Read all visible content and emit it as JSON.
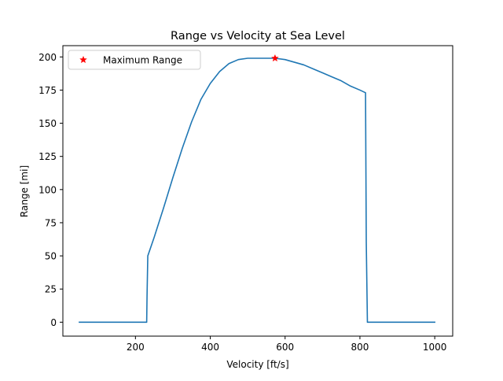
{
  "chart_data": {
    "type": "line",
    "title": "Range vs Velocity at Sea Level",
    "xlabel": "Velocity [ft/s]",
    "ylabel": "Range [mi]",
    "xlim": [
      6,
      1048
    ],
    "ylim": [
      -10.5,
      208.5
    ],
    "grid": false,
    "legend_position": "top-left",
    "x_ticks": [
      200,
      400,
      600,
      800,
      1000
    ],
    "y_ticks": [
      0,
      25,
      50,
      75,
      100,
      125,
      150,
      175,
      200
    ],
    "series": [
      {
        "name": "",
        "style": "line",
        "color": "#1f77b4",
        "x": [
          50,
          230,
          231,
          233,
          250,
          275,
          300,
          325,
          350,
          375,
          400,
          425,
          450,
          475,
          500,
          525,
          550,
          573,
          600,
          625,
          650,
          675,
          700,
          725,
          750,
          775,
          800,
          815,
          817,
          820,
          900,
          1000
        ],
        "y": [
          0,
          0,
          20,
          50,
          64,
          86,
          109,
          131,
          151,
          168,
          180,
          189,
          195,
          198,
          199,
          199,
          199,
          199,
          198,
          196,
          194,
          191,
          188,
          185,
          182,
          178,
          175,
          173,
          60,
          0,
          0,
          0
        ]
      },
      {
        "name": "Maximum Range",
        "style": "marker",
        "marker": "star",
        "color": "#ff0000",
        "x": [
          573
        ],
        "y": [
          199
        ]
      }
    ]
  }
}
